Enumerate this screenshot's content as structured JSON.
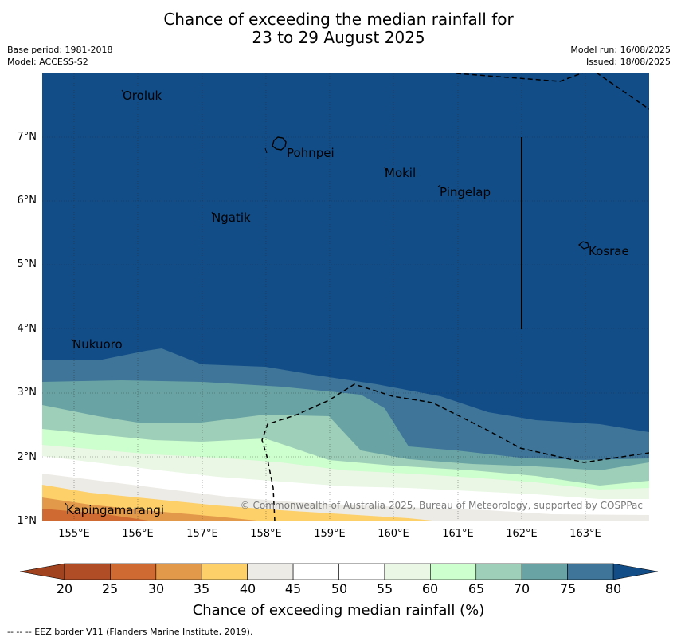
{
  "header": {
    "title_line1": "Chance of exceeding the median rainfall for",
    "title_line2": "23 to 29 August 2025",
    "base_period": "Base period: 1981-2018",
    "model": "Model: ACCESS-S2",
    "model_run": "Model run: 16/08/2025",
    "issued": "Issued: 18/08/2025"
  },
  "map": {
    "background_color": "#134d88",
    "lon_labels": [
      "155°E",
      "156°E",
      "157°E",
      "158°E",
      "159°E",
      "160°E",
      "161°E",
      "162°E",
      "163°E"
    ],
    "lat_labels": [
      "1°N",
      "2°N",
      "3°N",
      "4°N",
      "5°N",
      "6°N",
      "7°N"
    ],
    "places": {
      "oroluk": "Oroluk",
      "pohnpei": "Pohnpei",
      "mokil": "Mokil",
      "pingelap": "Pingelap",
      "ngatik": "Ngatik",
      "kosrae": "Kosrae",
      "nukuoro": "Nukuoro",
      "kapingamarangi": "Kapingamarangi"
    },
    "copyright": "© Commonwealth of Australia 2025, Bureau of Meteorology, supported by COSPPac"
  },
  "colorbar": {
    "ticks": [
      "20",
      "25",
      "30",
      "35",
      "40",
      "45",
      "50",
      "55",
      "60",
      "65",
      "70",
      "75",
      "80"
    ],
    "colors": [
      "#b04c26",
      "#cf6a32",
      "#e3994a",
      "#fdd06a",
      "#edebe6",
      "#ffffff",
      "#ffffff",
      "#e9f7e4",
      "#cdfecd",
      "#9ecfb8",
      "#6aa3a4",
      "#3e7599"
    ],
    "under_color": "#a1431f",
    "over_color": "#134d88",
    "label": "Chance of exceeding median rainfall (%)"
  },
  "footer": {
    "eez_note": "-- -- -- EEZ border V11 (Flanders Marine Institute, 2019)."
  }
}
